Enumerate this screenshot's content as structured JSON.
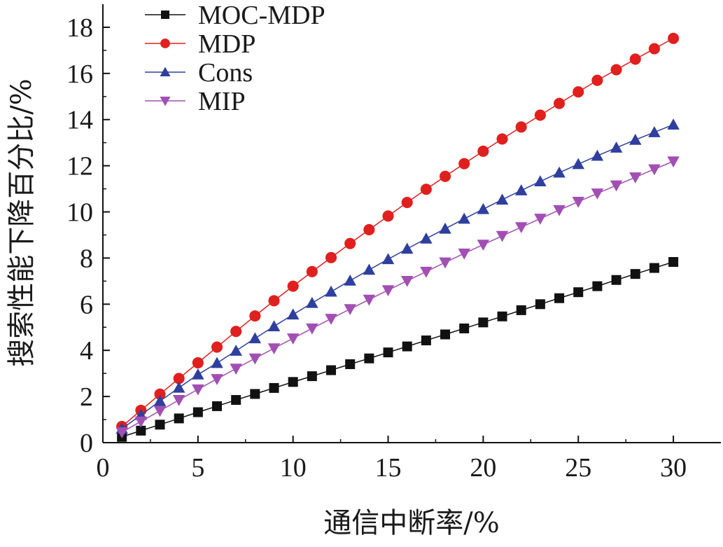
{
  "chart_data": {
    "type": "line",
    "title": "",
    "xlabel": "通信中断率/%",
    "ylabel": "搜索性能下降百分比/%",
    "xlim": [
      0,
      32.5
    ],
    "ylim": [
      0,
      19
    ],
    "x_ticks": [
      0,
      5,
      10,
      15,
      20,
      25,
      30
    ],
    "y_ticks": [
      0,
      2,
      4,
      6,
      8,
      10,
      12,
      14,
      16,
      18
    ],
    "grid": false,
    "legend_position": "top-left",
    "x": [
      1,
      2,
      3,
      4,
      5,
      6,
      7,
      8,
      9,
      10,
      11,
      12,
      13,
      14,
      15,
      16,
      17,
      18,
      19,
      20,
      21,
      22,
      23,
      24,
      25,
      26,
      27,
      28,
      29,
      30
    ],
    "series": [
      {
        "name": "MOC-MDP",
        "color": "#111111",
        "marker": "square",
        "values": [
          0.25,
          0.52,
          0.78,
          1.05,
          1.32,
          1.58,
          1.85,
          2.11,
          2.37,
          2.63,
          2.88,
          3.14,
          3.4,
          3.65,
          3.91,
          4.17,
          4.43,
          4.69,
          4.95,
          5.21,
          5.47,
          5.74,
          6.0,
          6.26,
          6.52,
          6.78,
          7.05,
          7.31,
          7.57,
          7.83
        ]
      },
      {
        "name": "MDP",
        "color": "#e0201e",
        "marker": "circle",
        "values": [
          0.7,
          1.4,
          2.1,
          2.78,
          3.46,
          4.14,
          4.82,
          5.49,
          6.15,
          6.78,
          7.41,
          8.02,
          8.63,
          9.23,
          9.82,
          10.41,
          10.98,
          11.54,
          12.09,
          12.63,
          13.16,
          13.68,
          14.19,
          14.7,
          15.2,
          15.7,
          16.16,
          16.62,
          17.07,
          17.52
        ]
      },
      {
        "name": "Cons",
        "color": "#2e3f9e",
        "marker": "triangle-up",
        "values": [
          0.6,
          1.2,
          1.8,
          2.38,
          2.95,
          3.45,
          3.98,
          4.52,
          5.04,
          5.55,
          6.05,
          6.54,
          7.02,
          7.49,
          7.95,
          8.4,
          8.84,
          9.27,
          9.7,
          10.12,
          10.53,
          10.93,
          11.32,
          11.7,
          12.07,
          12.43,
          12.78,
          13.12,
          13.45,
          13.78
        ]
      },
      {
        "name": "MIP",
        "color": "#a24fb3",
        "marker": "triangle-down",
        "values": [
          0.45,
          0.92,
          1.38,
          1.85,
          2.31,
          2.76,
          3.21,
          3.65,
          4.09,
          4.52,
          4.95,
          5.37,
          5.79,
          6.2,
          6.61,
          7.01,
          7.41,
          7.81,
          8.2,
          8.58,
          8.96,
          9.34,
          9.71,
          10.08,
          10.44,
          10.8,
          11.15,
          11.5,
          11.85,
          12.19
        ]
      }
    ]
  }
}
